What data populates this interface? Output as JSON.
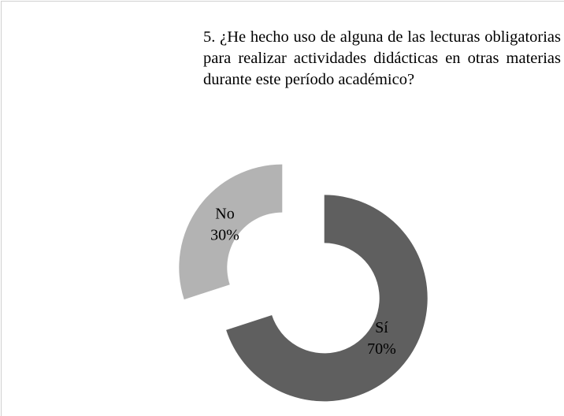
{
  "chart_data": {
    "type": "donut",
    "title": "5. ¿He hecho uso de alguna de las lecturas obligatorias para realizar actividades didácticas en otras materias durante este período académico?",
    "categories": [
      "Sí",
      "No"
    ],
    "values": [
      70,
      30
    ],
    "value_labels": [
      "70%",
      "30%"
    ],
    "colors": [
      "#5f5f5f",
      "#b3b3b3"
    ],
    "exploded": true
  }
}
